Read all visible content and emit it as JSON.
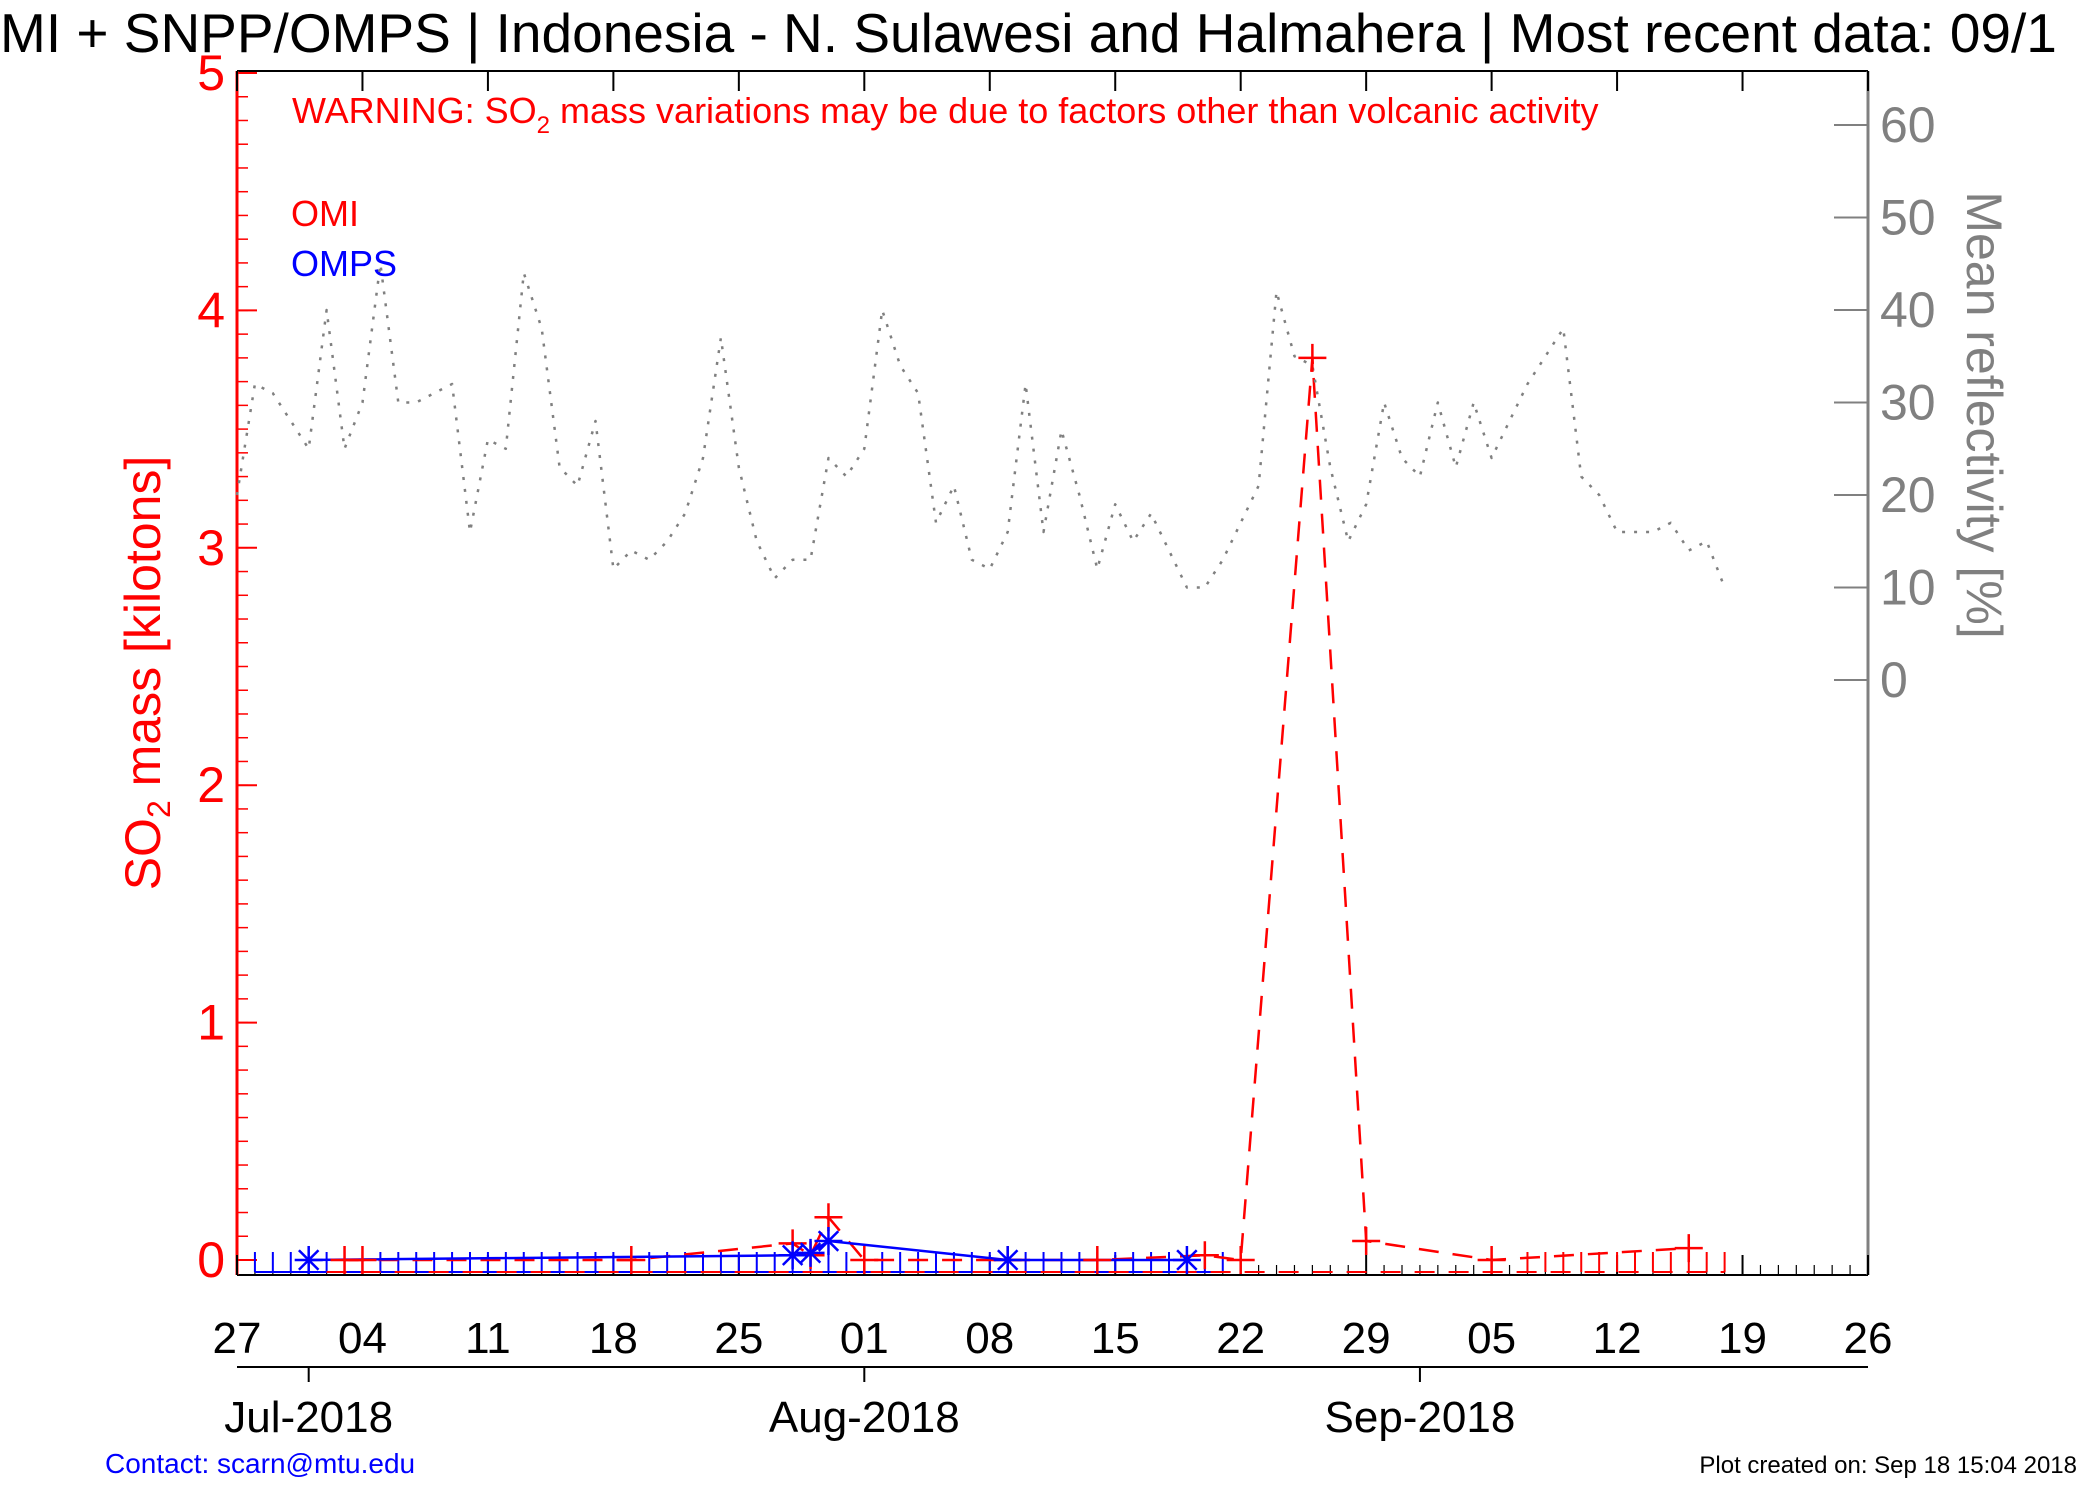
{
  "header": {
    "title": "MI + SNPP/OMPS | Indonesia - N. Sulawesi and Halmahera | Most recent data: 09/1"
  },
  "warning": {
    "prefix": "WARNING: SO",
    "subscript": "2",
    "suffix": " mass variations may be due to factors other than volcanic activity"
  },
  "footer": {
    "contact": "Contact: scarn@mtu.edu",
    "created": "Plot created on: Sep 18 15:04 2018"
  },
  "colors": {
    "omi": "#ff0000",
    "omps": "#0000ff",
    "reflectivity": "#808080"
  },
  "chart_data": {
    "type": "line",
    "x_unit": "day",
    "x_range": [
      "2018-06-27",
      "2018-09-26"
    ],
    "x_ticks": [
      "27",
      "04",
      "11",
      "18",
      "25",
      "01",
      "08",
      "15",
      "22",
      "29",
      "05",
      "12",
      "19",
      "26"
    ],
    "months": [
      "Jul-2018",
      "Aug-2018",
      "Sep-2018"
    ],
    "y_left": {
      "label_prefix": "SO",
      "label_sub": "2",
      "label_suffix": " mass [kilotons]",
      "range": [
        0,
        5
      ],
      "ticks": [
        "0",
        "1",
        "2",
        "3",
        "4",
        "5"
      ]
    },
    "y_right": {
      "label": "Mean reflectivity [%]",
      "range": [
        0,
        60
      ],
      "ticks": [
        "0",
        "10",
        "20",
        "30",
        "40",
        "50",
        "60"
      ]
    },
    "legend": [
      {
        "name": "OMI",
        "color": "#ff0000"
      },
      {
        "name": "OMPS",
        "color": "#0000ff"
      }
    ],
    "series": [
      {
        "name": "OMI",
        "axis": "left",
        "style": "dashed",
        "marker": "plus",
        "points": [
          [
            "2018-07-03",
            0.0
          ],
          [
            "2018-07-04",
            0.0
          ],
          [
            "2018-07-19",
            0.0
          ],
          [
            "2018-07-28",
            0.07
          ],
          [
            "2018-07-29",
            0.02
          ],
          [
            "2018-07-30",
            0.18
          ],
          [
            "2018-08-01",
            0.0
          ],
          [
            "2018-08-09",
            0.0
          ],
          [
            "2018-08-14",
            0.0
          ],
          [
            "2018-08-20",
            0.02
          ],
          [
            "2018-08-22",
            0.0
          ],
          [
            "2018-08-26",
            3.8
          ],
          [
            "2018-08-29",
            0.08
          ],
          [
            "2018-09-05",
            0.0
          ],
          [
            "2018-09-16",
            0.05
          ]
        ]
      },
      {
        "name": "OMPS",
        "axis": "left",
        "style": "solid",
        "marker": "asterisk",
        "points": [
          [
            "2018-07-01",
            0.0
          ],
          [
            "2018-07-28",
            0.02
          ],
          [
            "2018-07-29",
            0.03
          ],
          [
            "2018-07-30",
            0.08
          ],
          [
            "2018-08-09",
            0.0
          ],
          [
            "2018-08-19",
            0.0
          ]
        ]
      },
      {
        "name": "Mean reflectivity",
        "axis": "right",
        "style": "dotted",
        "points": [
          [
            "2018-06-27",
            20
          ],
          [
            "2018-06-28",
            32
          ],
          [
            "2018-06-29",
            31
          ],
          [
            "2018-06-30",
            28
          ],
          [
            "2018-07-01",
            25
          ],
          [
            "2018-07-02",
            40
          ],
          [
            "2018-07-03",
            25
          ],
          [
            "2018-07-04",
            30
          ],
          [
            "2018-07-05",
            45
          ],
          [
            "2018-07-06",
            30
          ],
          [
            "2018-07-07",
            30
          ],
          [
            "2018-07-08",
            31
          ],
          [
            "2018-07-09",
            32
          ],
          [
            "2018-07-10",
            16
          ],
          [
            "2018-07-11",
            26
          ],
          [
            "2018-07-12",
            25
          ],
          [
            "2018-07-13",
            44
          ],
          [
            "2018-07-14",
            38
          ],
          [
            "2018-07-15",
            23
          ],
          [
            "2018-07-16",
            21
          ],
          [
            "2018-07-17",
            28
          ],
          [
            "2018-07-18",
            12
          ],
          [
            "2018-07-19",
            14
          ],
          [
            "2018-07-20",
            13
          ],
          [
            "2018-07-21",
            15
          ],
          [
            "2018-07-22",
            18
          ],
          [
            "2018-07-23",
            24
          ],
          [
            "2018-07-24",
            37
          ],
          [
            "2018-07-25",
            23
          ],
          [
            "2018-07-26",
            15
          ],
          [
            "2018-07-27",
            11
          ],
          [
            "2018-07-28",
            13
          ],
          [
            "2018-07-29",
            13
          ],
          [
            "2018-07-30",
            24
          ],
          [
            "2018-07-31",
            22
          ],
          [
            "2018-08-01",
            25
          ],
          [
            "2018-08-02",
            40
          ],
          [
            "2018-08-03",
            34
          ],
          [
            "2018-08-04",
            31
          ],
          [
            "2018-08-05",
            17
          ],
          [
            "2018-08-06",
            21
          ],
          [
            "2018-08-07",
            13
          ],
          [
            "2018-08-08",
            12
          ],
          [
            "2018-08-09",
            16
          ],
          [
            "2018-08-10",
            32
          ],
          [
            "2018-08-11",
            16
          ],
          [
            "2018-08-12",
            27
          ],
          [
            "2018-08-13",
            20
          ],
          [
            "2018-08-14",
            12
          ],
          [
            "2018-08-15",
            19
          ],
          [
            "2018-08-16",
            15
          ],
          [
            "2018-08-17",
            18
          ],
          [
            "2018-08-18",
            14
          ],
          [
            "2018-08-19",
            10
          ],
          [
            "2018-08-20",
            10
          ],
          [
            "2018-08-21",
            13
          ],
          [
            "2018-08-22",
            17
          ],
          [
            "2018-08-23",
            21
          ],
          [
            "2018-08-24",
            42
          ],
          [
            "2018-08-25",
            35
          ],
          [
            "2018-08-26",
            34
          ],
          [
            "2018-08-27",
            23
          ],
          [
            "2018-08-28",
            15
          ],
          [
            "2018-08-29",
            19
          ],
          [
            "2018-08-30",
            30
          ],
          [
            "2018-08-31",
            24
          ],
          [
            "2018-09-01",
            22
          ],
          [
            "2018-09-02",
            30
          ],
          [
            "2018-09-03",
            23
          ],
          [
            "2018-09-04",
            30
          ],
          [
            "2018-09-05",
            24
          ],
          [
            "2018-09-06",
            28
          ],
          [
            "2018-09-07",
            32
          ],
          [
            "2018-09-08",
            35
          ],
          [
            "2018-09-09",
            38
          ],
          [
            "2018-09-10",
            22
          ],
          [
            "2018-09-11",
            20
          ],
          [
            "2018-09-12",
            16
          ],
          [
            "2018-09-13",
            16
          ],
          [
            "2018-09-14",
            16
          ],
          [
            "2018-09-15",
            17
          ],
          [
            "2018-09-16",
            14
          ],
          [
            "2018-09-17",
            15
          ],
          [
            "2018-09-18",
            10
          ]
        ]
      }
    ]
  }
}
